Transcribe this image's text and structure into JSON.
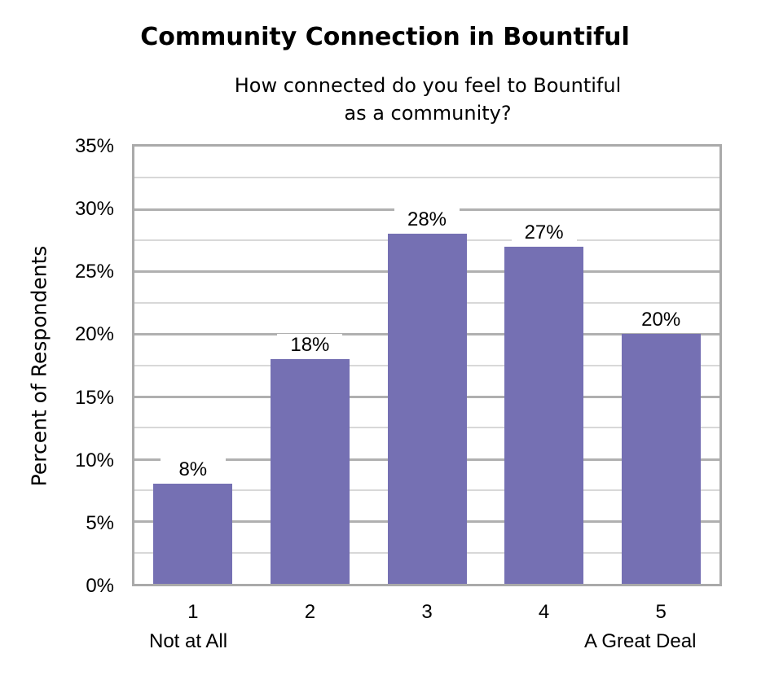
{
  "chart_data": {
    "type": "bar",
    "title": "Community Connection in Bountiful",
    "subtitle_line1": "How connected do you feel to Bountiful",
    "subtitle_line2": "as a community?",
    "xlabel": "",
    "ylabel": "Percent of Respondents",
    "categories": [
      "1",
      "2",
      "3",
      "4",
      "5"
    ],
    "category_sublabels": {
      "first": "Not at All",
      "last": "A Great Deal"
    },
    "values": [
      8,
      18,
      28,
      27,
      20
    ],
    "value_labels": [
      "8%",
      "18%",
      "28%",
      "27%",
      "20%"
    ],
    "ylim": [
      0,
      35
    ],
    "yticks": [
      "0%",
      "5%",
      "10%",
      "15%",
      "20%",
      "25%",
      "30%",
      "35%"
    ],
    "grid": true,
    "bar_color": "#7570b3"
  }
}
